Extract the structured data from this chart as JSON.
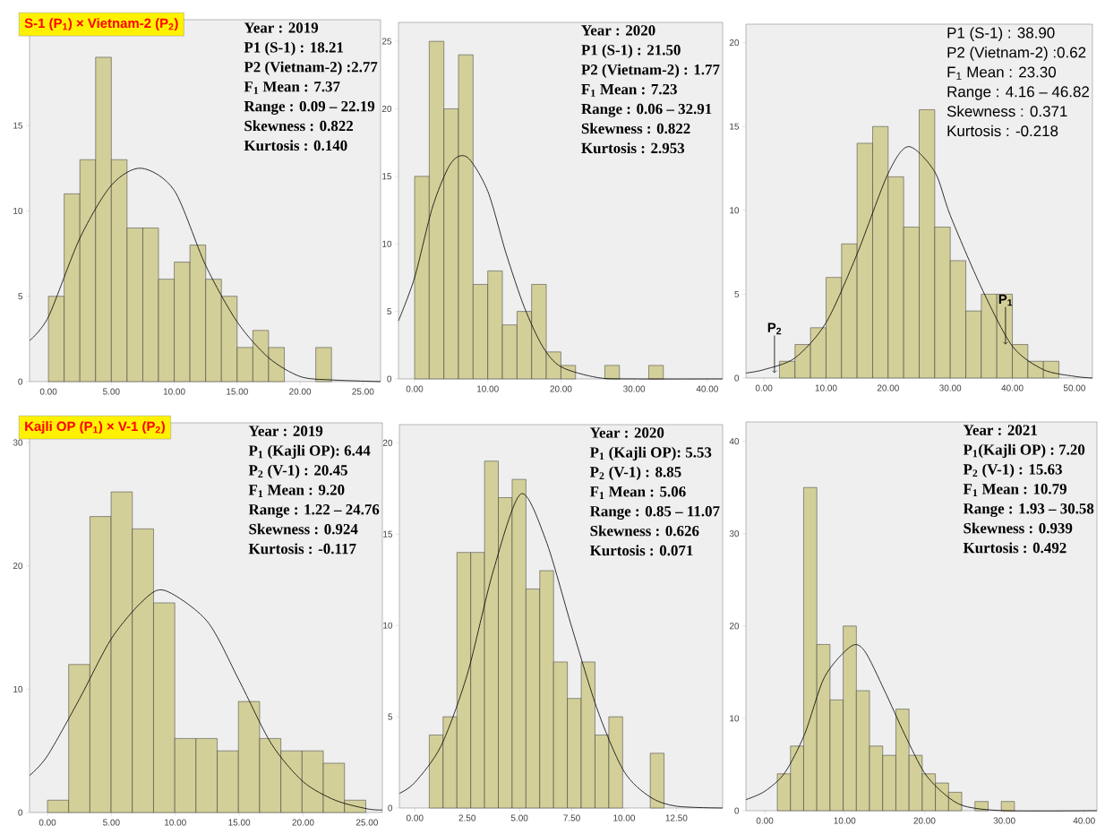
{
  "chart_data": [
    {
      "type": "histogram",
      "title": "S-1 (P$_{1}$) × Vietnam-2 (P$_{2}$)",
      "xlim": [
        -1.5,
        26.4
      ],
      "ylim": [
        0,
        21.2
      ],
      "xticks": [
        {
          "value": 0,
          "label": "0.00"
        },
        {
          "value": 5,
          "label": "5.00"
        },
        {
          "value": 10,
          "label": "10.00"
        },
        {
          "value": 15,
          "label": "15.00"
        },
        {
          "value": 20,
          "label": "20.00"
        },
        {
          "value": 25,
          "label": "25.00"
        }
      ],
      "yticks": [
        0,
        5,
        10,
        15
      ],
      "series": [
        {
          "color": "#d3cf99",
          "bins": [
            0,
            1.25,
            2.5,
            3.75,
            5,
            6.25,
            7.5,
            8.75,
            10,
            11.25,
            12.5,
            13.75,
            15,
            16.25,
            17.5,
            18.75,
            20,
            21.25,
            22.5
          ],
          "values": [
            5,
            11,
            13,
            19,
            13,
            9,
            9,
            6,
            7,
            8,
            6,
            5,
            2,
            3,
            2,
            0,
            0,
            2
          ]
        },
        {
          "type": "line",
          "color": "#000000",
          "x": [
            -1.5,
            0,
            2.5,
            5,
            7.37,
            10,
            12.5,
            15,
            17.5,
            20,
            22.5,
            26.4
          ],
          "values": [
            2.4,
            3.8,
            8.4,
            11.5,
            12.5,
            11.2,
            6.8,
            3.5,
            1.4,
            0.3,
            0.1,
            0
          ]
        }
      ],
      "annotations": [
        "Year : 2019",
        "P1 (S-1) : 18.21",
        "P2 (Vietnam-2) :2.77",
        "F$_{1}$ Mean : 7.37",
        "Range : 0.09 – 22.19",
        "Skewness : 0.822",
        "Kurtosis : 0.140"
      ]
    },
    {
      "type": "histogram",
      "xlim": [
        -2.2,
        42.1
      ],
      "ylim": [
        0,
        26.4
      ],
      "xticks": [
        {
          "value": 0,
          "label": "0.00"
        },
        {
          "value": 10,
          "label": "10.00"
        },
        {
          "value": 20,
          "label": "20.00"
        },
        {
          "value": 30,
          "label": "30.00"
        },
        {
          "value": 40,
          "label": "40.00"
        }
      ],
      "yticks": [
        0,
        5,
        10,
        15,
        20,
        25
      ],
      "series": [
        {
          "color": "#d3cf99",
          "bins": [
            0,
            2,
            4,
            6,
            8,
            10,
            12,
            14,
            16,
            18,
            20,
            22,
            24,
            26,
            28,
            30,
            32,
            34
          ],
          "values": [
            15,
            25,
            20,
            24,
            7,
            8,
            4,
            5,
            7,
            2,
            1,
            0,
            0,
            1,
            0,
            0,
            1
          ]
        },
        {
          "type": "line",
          "color": "#000000",
          "x": [
            -2.2,
            0,
            2.5,
            5,
            7.23,
            10,
            12.5,
            15,
            17.5,
            20,
            25,
            30,
            42.1
          ],
          "values": [
            4.3,
            7.5,
            12.8,
            16,
            16.4,
            13.9,
            9.3,
            5.3,
            2.4,
            0.9,
            0.1,
            0,
            0
          ]
        }
      ],
      "annotations": [
        "Year : 2020",
        "P1 (S-1) : 21.50",
        "P2 (Vietnam-2) : 1.77",
        "F$_{1}$ Mean : 7.23",
        "Range : 0.06 – 32.91",
        "Skewness : 0.822",
        "Kurtosis : 2.953"
      ]
    },
    {
      "type": "histogram",
      "xlim": [
        -2.9,
        52.9
      ],
      "ylim": [
        0,
        21.1
      ],
      "xticks": [
        {
          "value": 0,
          "label": "0.00"
        },
        {
          "value": 10,
          "label": "10.00"
        },
        {
          "value": 20,
          "label": "20.00"
        },
        {
          "value": 30,
          "label": "30.00"
        },
        {
          "value": 40,
          "label": "40.00"
        },
        {
          "value": 50,
          "label": "50.00"
        }
      ],
      "yticks": [
        0,
        5,
        10,
        15,
        20
      ],
      "series": [
        {
          "color": "#d3cf99",
          "bins": [
            2.5,
            5,
            7.5,
            10,
            12.5,
            15,
            17.5,
            20,
            22.5,
            25,
            27.5,
            30,
            32.5,
            35,
            37.5,
            40,
            42.5,
            45,
            47.5
          ],
          "values": [
            1,
            2,
            3,
            6,
            8,
            14,
            15,
            12,
            9,
            16,
            9,
            7,
            4,
            5,
            5,
            2,
            1,
            1
          ]
        },
        {
          "type": "line",
          "color": "#000000",
          "x": [
            -2.9,
            0,
            5,
            10,
            15,
            20,
            23.3,
            27.5,
            30,
            35,
            40,
            45,
            50,
            52.9
          ],
          "values": [
            0.3,
            0.5,
            1.2,
            3.3,
            7.4,
            12.2,
            13.8,
            12.3,
            9.7,
            5.4,
            1.9,
            0.5,
            0.1,
            0
          ]
        }
      ],
      "annotations": [
        "P1 (S-1) : 38.90",
        "P2 (Vietnam-2) :0.62",
        "F$_{1}$ Mean : 23.30",
        "Range : 4.16 – 46.82",
        "Skewness : 0.371",
        "Kurtosis : -0.218",
        {
          "text": "P$_{2}$",
          "x": 1.7,
          "y": 0.3
        },
        {
          "text": "P$_{1}$",
          "x": 38.9,
          "y": 2
        }
      ]
    },
    {
      "type": "histogram",
      "title": "Kajli OP (P$_{1}$) × V-1 (P$_{2}$)",
      "xlim": [
        -1.4,
        26.2
      ],
      "ylim": [
        0,
        31.6
      ],
      "xticks": [
        {
          "value": 0,
          "label": "0.00"
        },
        {
          "value": 5,
          "label": "5.00"
        },
        {
          "value": 10,
          "label": "10.00"
        },
        {
          "value": 15,
          "label": "15.00"
        },
        {
          "value": 20,
          "label": "20.00"
        },
        {
          "value": 25,
          "label": "25.00"
        }
      ],
      "yticks": [
        0,
        10,
        20,
        30
      ],
      "series": [
        {
          "color": "#d3cf99",
          "bins": [
            0,
            1.66,
            3.32,
            4.98,
            6.64,
            8.3,
            9.96,
            11.62,
            13.28,
            14.94,
            16.6,
            18.26,
            19.92,
            21.58,
            23.24,
            24.9
          ],
          "values": [
            1,
            12,
            24,
            26,
            23,
            17,
            6,
            6,
            5,
            9,
            6,
            5,
            5,
            4,
            1
          ]
        },
        {
          "type": "line",
          "color": "#000000",
          "x": [
            -1.4,
            0,
            2.5,
            5,
            7.5,
            9.2,
            12.5,
            15,
            17.5,
            20,
            22.5,
            25,
            26.2
          ],
          "values": [
            3,
            4.6,
            9.2,
            14.1,
            17.2,
            18,
            15.5,
            10.7,
            5.6,
            2.5,
            1,
            0.3,
            0.2
          ]
        }
      ],
      "annotations": [
        "Year : 2019",
        "P$_{1}$ (Kajli OP): 6.44",
        "P$_{2}$ (V-1) : 20.45",
        "F$_{1}$ Mean : 9.20",
        "Range : 1.22 – 24.76",
        "Skewness : 0.924",
        "Kurtosis : -0.117"
      ]
    },
    {
      "type": "histogram",
      "xlim": [
        -0.74,
        14.71
      ],
      "ylim": [
        0,
        21
      ],
      "xticks": [
        {
          "value": 0,
          "label": "0.00"
        },
        {
          "value": 2.5,
          "label": "2.50"
        },
        {
          "value": 5,
          "label": "5.00"
        },
        {
          "value": 7.5,
          "label": "7.50"
        },
        {
          "value": 10,
          "label": "10.00"
        },
        {
          "value": 12.5,
          "label": "12.50"
        }
      ],
      "yticks": [
        0,
        5,
        10,
        15,
        20
      ],
      "series": [
        {
          "color": "#d3cf99",
          "bins": [
            0.69,
            1.35,
            2.01,
            2.67,
            3.33,
            3.99,
            4.65,
            5.31,
            5.97,
            6.63,
            7.29,
            7.95,
            8.61,
            9.27,
            9.93,
            10.59,
            11.25,
            11.91
          ],
          "values": [
            4,
            5,
            14,
            14,
            19,
            17,
            18,
            12,
            13,
            8,
            6,
            8,
            4,
            5,
            0,
            0,
            3
          ]
        },
        {
          "type": "line",
          "color": "#000000",
          "x": [
            -0.74,
            0,
            1.25,
            2.5,
            3.75,
            5.06,
            6.25,
            7.5,
            8.75,
            10,
            11.25,
            12.5,
            14.71
          ],
          "values": [
            0.8,
            1.4,
            3.4,
            7.3,
            13,
            17.2,
            14.7,
            9.9,
            5.3,
            2,
            0.6,
            0.1,
            0
          ]
        }
      ],
      "annotations": [
        "Year : 2020",
        "P$_{1}$ (Kajli OP): 5.53",
        "P$_{2}$ (V-1) : 8.85",
        "F$_{1}$ Mean : 5.06",
        "Range : 0.85 – 11.07",
        "Skewness : 0.626",
        "Kurtosis : 0.071"
      ]
    },
    {
      "type": "histogram",
      "xlim": [
        -2.36,
        41.6
      ],
      "ylim": [
        0,
        42.1
      ],
      "xticks": [
        {
          "value": 0,
          "label": "0.00"
        },
        {
          "value": 10,
          "label": "10.00"
        },
        {
          "value": 20,
          "label": "20.00"
        },
        {
          "value": 30,
          "label": "30.00"
        },
        {
          "value": 40,
          "label": "40.00"
        }
      ],
      "yticks": [
        0,
        10,
        20,
        30,
        40
      ],
      "series": [
        {
          "color": "#d3cf99",
          "bins": [
            1.57,
            3.22,
            4.87,
            6.52,
            8.17,
            9.82,
            11.47,
            13.12,
            14.77,
            16.42,
            18.07,
            19.72,
            21.37,
            23.02,
            24.67,
            26.32,
            27.97,
            29.62,
            31.27
          ],
          "values": [
            4,
            7,
            35,
            18,
            12,
            20,
            13,
            7,
            6,
            11,
            6,
            4,
            3,
            2,
            0,
            1,
            0,
            1
          ]
        },
        {
          "type": "line",
          "color": "#000000",
          "x": [
            -2.36,
            0,
            2.5,
            5,
            7.5,
            10.79,
            12.5,
            15,
            17.5,
            20,
            22.5,
            25,
            30,
            41.6
          ],
          "values": [
            1.2,
            2.1,
            4.1,
            8.3,
            14.5,
            17.8,
            17.3,
            13,
            8.3,
            4.1,
            1.8,
            0.5,
            0,
            0
          ]
        }
      ],
      "annotations": [
        "Year : 2021",
        "P$_{1}$(Kajli OP) : 7.20",
        "P$_{2}$ (V-1) : 15.63",
        "F$_{1}$ Mean : 10.79",
        "Range : 1.93 – 30.58",
        "Skewness : 0.939",
        "Kurtosis : 0.492"
      ]
    }
  ]
}
